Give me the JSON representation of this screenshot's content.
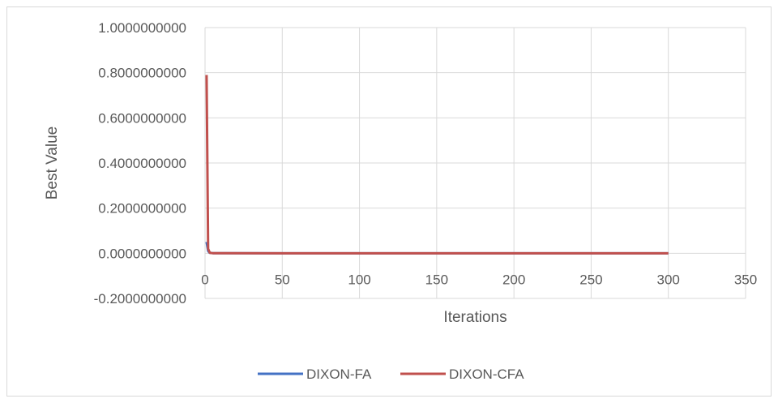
{
  "chart_data": {
    "type": "line",
    "title": "",
    "xlabel": "Iterations",
    "ylabel": "Best Value",
    "xlim": [
      0,
      350
    ],
    "ylim": [
      -0.2,
      1.0
    ],
    "x_ticks": [
      0,
      50,
      100,
      150,
      200,
      250,
      300,
      350
    ],
    "x_tick_labels": [
      "0",
      "50",
      "100",
      "150",
      "200",
      "250",
      "300",
      "350"
    ],
    "y_ticks": [
      -0.2,
      0,
      0.2,
      0.4,
      0.6,
      0.8,
      1.0
    ],
    "y_tick_labels": [
      "-0.2000000000",
      "0.0000000000",
      "0.2000000000",
      "0.4000000000",
      "0.6000000000",
      "0.8000000000",
      "1.0000000000"
    ],
    "grid": true,
    "legend_position": "bottom",
    "series": [
      {
        "name": "DIXON-FA",
        "color": "#4472c4",
        "x": [
          1,
          2,
          3,
          5,
          10,
          50,
          100,
          150,
          200,
          250,
          300
        ],
        "y": [
          0.05,
          0.01,
          0.002,
          0.0005,
          0.0001,
          0,
          0,
          0,
          0,
          0,
          0
        ]
      },
      {
        "name": "DIXON-CFA",
        "color": "#c0504d",
        "x": [
          1,
          2,
          3,
          4,
          5,
          10,
          50,
          100,
          150,
          200,
          250,
          300
        ],
        "y": [
          0.79,
          0.02,
          0.003,
          0.001,
          0.0005,
          0.0001,
          0,
          0,
          0,
          0,
          0,
          0
        ]
      }
    ]
  }
}
